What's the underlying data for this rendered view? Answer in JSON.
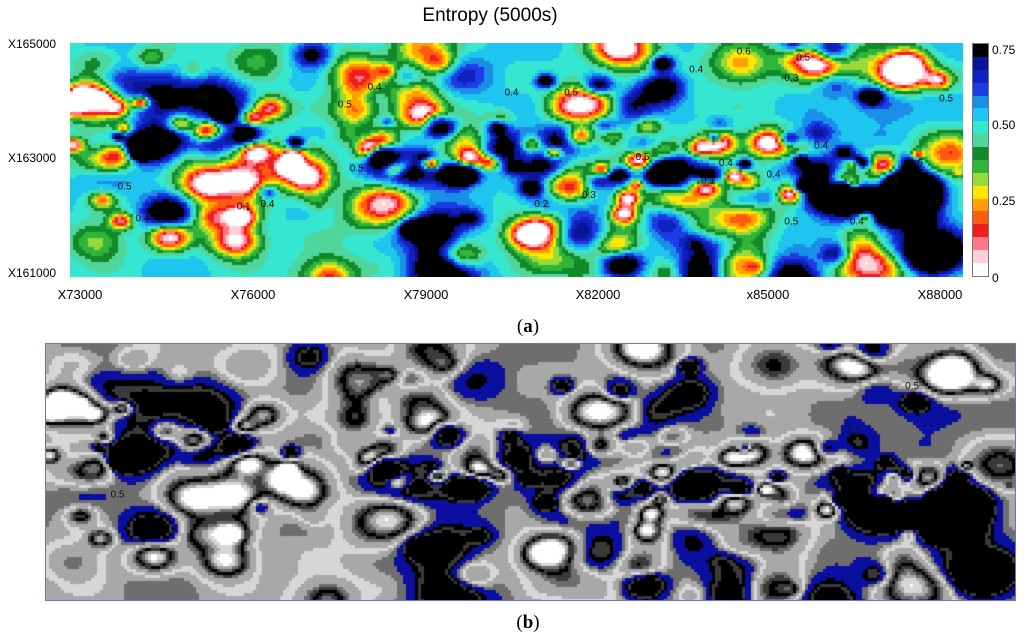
{
  "panel_a_label": [
    "(",
    "a",
    ")"
  ],
  "panel_b_label": [
    "(",
    "b",
    ")"
  ],
  "chart_data": [
    {
      "type": "heatmap",
      "panel": "a",
      "title": "Entropy (5000s)",
      "xlabel": "",
      "ylabel": "",
      "x_ticks": [
        "X73000",
        "X76000",
        "X79000",
        "X82000",
        "x85000",
        "X88000"
      ],
      "y_ticks": [
        "X165000",
        "X163000",
        "X161000"
      ],
      "xlim": [
        73000,
        88000
      ],
      "ylim": [
        161000,
        165000
      ],
      "colorbar": {
        "range": [
          0,
          0.75
        ],
        "tick_labels": [
          "0.75",
          "0.50",
          "0.25",
          "0"
        ],
        "tick_values": [
          0.75,
          0.5,
          0.25,
          0
        ],
        "colors": [
          "#ffffff",
          "#ffd0d6",
          "#ff7a86",
          "#ef1d1d",
          "#ff5a12",
          "#ffa000",
          "#ffe600",
          "#9ad93a",
          "#2fb53a",
          "#138a2a",
          "#4fd69b",
          "#35e6d0",
          "#1ec5ee",
          "#1a8fe8",
          "#1c3ce6",
          "#0f22c0",
          "#0a1495",
          "#000000"
        ]
      },
      "contour_labels": [
        "0.5",
        "0.4",
        "0.3",
        "0.2",
        "0.1",
        "0.6"
      ],
      "visible_annotations": [
        {
          "x": 74100,
          "y": 161950,
          "label": "0.4"
        },
        {
          "x": 73800,
          "y": 162500,
          "label": "0.5"
        },
        {
          "x": 75100,
          "y": 164000,
          "label": "0.5"
        },
        {
          "x": 75800,
          "y": 162150,
          "label": "0.1"
        },
        {
          "x": 76200,
          "y": 162200,
          "label": "0.4"
        },
        {
          "x": 77500,
          "y": 163900,
          "label": "0.5"
        },
        {
          "x": 78000,
          "y": 164200,
          "label": "0.4"
        },
        {
          "x": 77700,
          "y": 162800,
          "label": "0.5"
        },
        {
          "x": 80300,
          "y": 164100,
          "label": "0.4"
        },
        {
          "x": 81300,
          "y": 164100,
          "label": "0.5"
        },
        {
          "x": 81000,
          "y": 163250,
          "label": "0.4"
        },
        {
          "x": 80800,
          "y": 162200,
          "label": "0.2"
        },
        {
          "x": 81600,
          "y": 162350,
          "label": "0.3"
        },
        {
          "x": 82500,
          "y": 163000,
          "label": "0.5"
        },
        {
          "x": 83400,
          "y": 164500,
          "label": "0.4"
        },
        {
          "x": 84200,
          "y": 164800,
          "label": "0.6"
        },
        {
          "x": 85200,
          "y": 164700,
          "label": "0.5"
        },
        {
          "x": 85000,
          "y": 164350,
          "label": "0.3"
        },
        {
          "x": 83900,
          "y": 162900,
          "label": "0.4"
        },
        {
          "x": 83600,
          "y": 162600,
          "label": "0.1"
        },
        {
          "x": 84700,
          "y": 162700,
          "label": "0.4"
        },
        {
          "x": 85500,
          "y": 163200,
          "label": "0.4"
        },
        {
          "x": 85000,
          "y": 161900,
          "label": "0.5"
        },
        {
          "x": 86100,
          "y": 161900,
          "label": "0.4"
        },
        {
          "x": 86700,
          "y": 162600,
          "label": "0.4"
        },
        {
          "x": 87100,
          "y": 162900,
          "label": "0.5"
        },
        {
          "x": 87600,
          "y": 164000,
          "label": "0.5"
        },
        {
          "x": 87400,
          "y": 162200,
          "label": "0.5"
        }
      ]
    },
    {
      "type": "heatmap",
      "panel": "b",
      "title": "",
      "xlabel": "",
      "ylabel": "",
      "colors": [
        "#000000",
        "#3a3a3a",
        "#6e6e6e",
        "#a8a8a8",
        "#d6d6d6",
        "#ffffff",
        "#0a0fa0"
      ],
      "contour_labels": [
        "0.5",
        "0.4",
        "0.2"
      ],
      "visible_annotations": [
        {
          "x": 74000,
          "y": 162600,
          "label": "0.5"
        },
        {
          "x": 86300,
          "y": 164300,
          "label": "0.5"
        },
        {
          "x": 85400,
          "y": 163600,
          "label": "0.5"
        }
      ]
    }
  ]
}
